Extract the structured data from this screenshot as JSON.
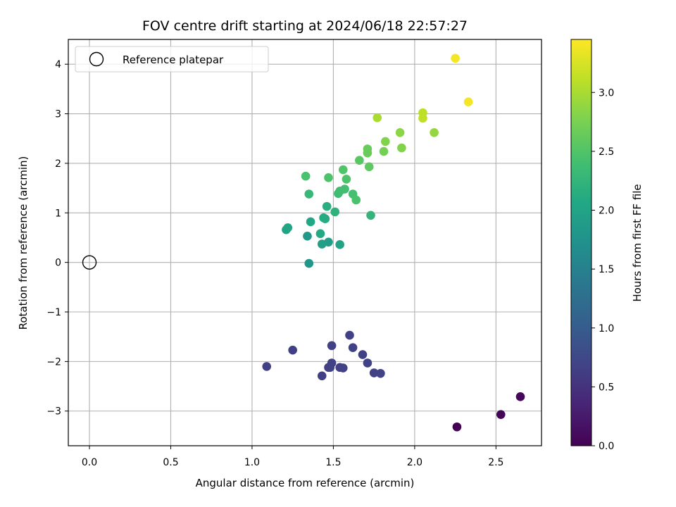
{
  "chart_data": {
    "type": "scatter",
    "title": "FOV centre drift starting at 2024/06/18 22:57:27",
    "xlabel": "Angular distance from reference (arcmin)",
    "ylabel": "Rotation from reference (arcmin)",
    "xlim": [
      -0.13,
      2.78
    ],
    "ylim": [
      -3.7,
      4.5
    ],
    "xticks": [
      0.0,
      0.5,
      1.0,
      1.5,
      2.0,
      2.5
    ],
    "xtick_labels": [
      "0.0",
      "0.5",
      "1.0",
      "1.5",
      "2.0",
      "2.5"
    ],
    "yticks": [
      -3,
      -2,
      -1,
      0,
      1,
      2,
      3,
      4
    ],
    "ytick_labels": [
      "−3",
      "−2",
      "−1",
      "0",
      "1",
      "2",
      "3",
      "4"
    ],
    "grid": true,
    "legend": {
      "position": "top-left",
      "entries": [
        "Reference platepar"
      ]
    },
    "reference_point": {
      "x": 0.0,
      "y": 0.0
    },
    "colorbar": {
      "label": "Hours from first FF file",
      "range": [
        0.0,
        3.45
      ],
      "ticks": [
        0.0,
        0.5,
        1.0,
        1.5,
        2.0,
        2.5,
        3.0
      ],
      "tick_labels": [
        "0.0",
        "0.5",
        "1.0",
        "1.5",
        "2.0",
        "2.5",
        "3.0"
      ],
      "colormap": "viridis"
    },
    "points": [
      {
        "x": 2.26,
        "y": -3.32,
        "c": 0.0
      },
      {
        "x": 2.53,
        "y": -3.07,
        "c": 0.03
      },
      {
        "x": 2.65,
        "y": -2.71,
        "c": 0.06
      },
      {
        "x": 1.09,
        "y": -2.1,
        "c": 0.65
      },
      {
        "x": 1.25,
        "y": -1.77,
        "c": 0.65
      },
      {
        "x": 1.43,
        "y": -2.29,
        "c": 0.65
      },
      {
        "x": 1.47,
        "y": -2.12,
        "c": 0.65
      },
      {
        "x": 1.48,
        "y": -2.12,
        "c": 0.66
      },
      {
        "x": 1.49,
        "y": -2.03,
        "c": 0.66
      },
      {
        "x": 1.49,
        "y": -1.68,
        "c": 0.66
      },
      {
        "x": 1.54,
        "y": -2.12,
        "c": 0.66
      },
      {
        "x": 1.56,
        "y": -2.13,
        "c": 0.66
      },
      {
        "x": 1.6,
        "y": -1.47,
        "c": 0.66
      },
      {
        "x": 1.62,
        "y": -1.72,
        "c": 0.67
      },
      {
        "x": 1.68,
        "y": -1.86,
        "c": 0.67
      },
      {
        "x": 1.71,
        "y": -2.03,
        "c": 0.67
      },
      {
        "x": 1.75,
        "y": -2.23,
        "c": 0.67
      },
      {
        "x": 1.79,
        "y": -2.24,
        "c": 0.68
      },
      {
        "x": 1.35,
        "y": -0.02,
        "c": 1.8
      },
      {
        "x": 1.34,
        "y": 0.53,
        "c": 1.85
      },
      {
        "x": 1.47,
        "y": 0.41,
        "c": 1.9
      },
      {
        "x": 1.43,
        "y": 0.37,
        "c": 1.95
      },
      {
        "x": 1.54,
        "y": 0.36,
        "c": 2.0
      },
      {
        "x": 1.21,
        "y": 0.66,
        "c": 2.0
      },
      {
        "x": 1.22,
        "y": 0.7,
        "c": 2.02
      },
      {
        "x": 1.36,
        "y": 0.82,
        "c": 2.05
      },
      {
        "x": 1.42,
        "y": 0.58,
        "c": 2.08
      },
      {
        "x": 1.44,
        "y": 0.9,
        "c": 2.1
      },
      {
        "x": 1.45,
        "y": 0.88,
        "c": 2.12
      },
      {
        "x": 1.46,
        "y": 1.13,
        "c": 2.15
      },
      {
        "x": 1.51,
        "y": 1.02,
        "c": 2.2
      },
      {
        "x": 1.73,
        "y": 0.95,
        "c": 2.25
      },
      {
        "x": 1.35,
        "y": 1.38,
        "c": 2.3
      },
      {
        "x": 1.53,
        "y": 1.39,
        "c": 2.35
      },
      {
        "x": 1.54,
        "y": 1.44,
        "c": 2.38
      },
      {
        "x": 1.57,
        "y": 1.48,
        "c": 2.4
      },
      {
        "x": 1.62,
        "y": 1.38,
        "c": 2.42
      },
      {
        "x": 1.64,
        "y": 1.26,
        "c": 2.45
      },
      {
        "x": 1.33,
        "y": 1.74,
        "c": 2.45
      },
      {
        "x": 1.47,
        "y": 1.71,
        "c": 2.47
      },
      {
        "x": 1.58,
        "y": 1.68,
        "c": 2.48
      },
      {
        "x": 1.56,
        "y": 1.87,
        "c": 2.5
      },
      {
        "x": 1.66,
        "y": 2.06,
        "c": 2.55
      },
      {
        "x": 1.72,
        "y": 1.93,
        "c": 2.58
      },
      {
        "x": 1.71,
        "y": 2.29,
        "c": 2.65
      },
      {
        "x": 1.71,
        "y": 2.21,
        "c": 2.65
      },
      {
        "x": 1.81,
        "y": 2.24,
        "c": 2.72
      },
      {
        "x": 1.82,
        "y": 2.44,
        "c": 2.8
      },
      {
        "x": 1.92,
        "y": 2.31,
        "c": 2.8
      },
      {
        "x": 1.91,
        "y": 2.62,
        "c": 2.85
      },
      {
        "x": 2.12,
        "y": 2.62,
        "c": 2.9
      },
      {
        "x": 1.77,
        "y": 2.92,
        "c": 3.0
      },
      {
        "x": 2.05,
        "y": 3.02,
        "c": 3.1
      },
      {
        "x": 2.05,
        "y": 2.91,
        "c": 3.12
      },
      {
        "x": 2.33,
        "y": 3.24,
        "c": 3.4
      },
      {
        "x": 2.25,
        "y": 4.12,
        "c": 3.4
      }
    ]
  }
}
